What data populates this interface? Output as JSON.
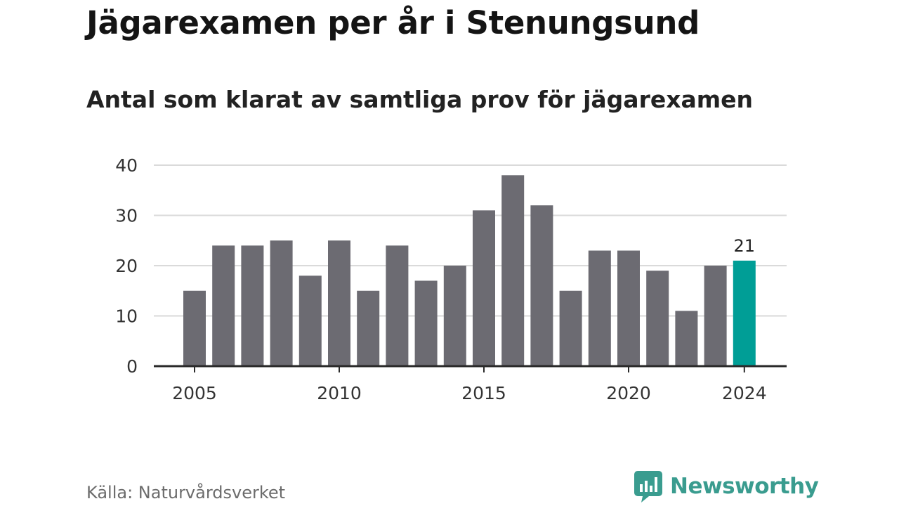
{
  "title": "Jägarexamen per år i Stenungsund",
  "subtitle": "Antal som klarat av samtliga prov för jägarexamen",
  "source": "Källa: Naturvårdsverket",
  "brand": {
    "name": "Newsworthy",
    "icon": "newsworthy-logo-icon",
    "color": "#3a9c8f"
  },
  "chart_data": {
    "type": "bar",
    "title": "Jägarexamen per år i Stenungsund",
    "subtitle": "Antal som klarat av samtliga prov för jägarexamen",
    "categories": [
      "2005",
      "2006",
      "2007",
      "2008",
      "2009",
      "2010",
      "2011",
      "2012",
      "2013",
      "2014",
      "2015",
      "2016",
      "2017",
      "2018",
      "2019",
      "2020",
      "2021",
      "2022",
      "2023",
      "2024"
    ],
    "values": [
      15,
      24,
      24,
      25,
      18,
      25,
      15,
      24,
      17,
      20,
      31,
      38,
      32,
      15,
      23,
      23,
      19,
      11,
      20,
      21
    ],
    "x_tick_labels": [
      "2005",
      "2010",
      "2015",
      "2020",
      "2024"
    ],
    "y_ticks": [
      "0",
      "10",
      "20",
      "30",
      "40"
    ],
    "ylim": [
      0,
      40
    ],
    "grid": true,
    "highlight": {
      "category": "2024",
      "label": "21",
      "color": "#009e96"
    },
    "bar_color": "#6c6b72",
    "grid_color": "#dadada",
    "axis_color": "#2a2a2a"
  }
}
